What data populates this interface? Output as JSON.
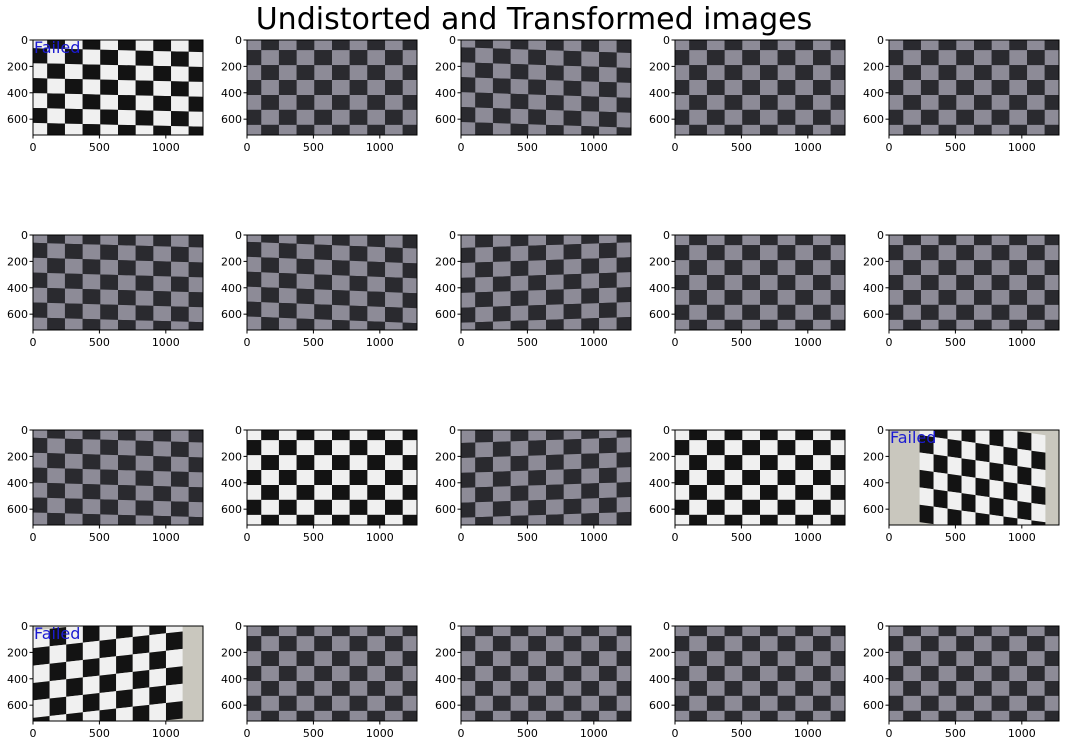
{
  "figure": {
    "suptitle": "Undistorted and Transformed images"
  },
  "colors": {
    "axis": "#000000",
    "failed_text": "#1b1bd1",
    "bw_light": "#f0f0f0",
    "bw_dark": "#131313",
    "gray_light": "#8d8b97",
    "gray_dark": "#2a2a2f",
    "photo_background": "#c9c7be"
  },
  "chart_data": {
    "type": "image-grid",
    "rows": 4,
    "cols": 5,
    "image_width": 1280,
    "image_height": 720,
    "xlim": [
      0,
      1280
    ],
    "ylim": [
      720,
      0
    ],
    "xticks": [
      0,
      500,
      1000
    ],
    "yticks": [
      0,
      200,
      400,
      600
    ],
    "panels": [
      {
        "style": "bw",
        "label": "Failed",
        "skew": 0.04
      },
      {
        "style": "gray",
        "label": "",
        "skew": 0.0
      },
      {
        "style": "gray",
        "label": "",
        "skew": 0.06
      },
      {
        "style": "gray",
        "label": "",
        "skew": 0.0
      },
      {
        "style": "gray",
        "label": "",
        "skew": 0.0
      },
      {
        "style": "gray",
        "label": "",
        "skew": 0.05
      },
      {
        "style": "gray",
        "label": "",
        "skew": 0.07
      },
      {
        "style": "gray",
        "label": "",
        "skew": -0.06
      },
      {
        "style": "gray",
        "label": "",
        "skew": 0.0
      },
      {
        "style": "gray",
        "label": "",
        "skew": 0.0
      },
      {
        "style": "gray",
        "label": "",
        "skew": 0.05
      },
      {
        "style": "bw",
        "label": "",
        "skew": 0.0
      },
      {
        "style": "gray",
        "label": "",
        "skew": -0.06
      },
      {
        "style": "bw",
        "label": "",
        "skew": 0.0
      },
      {
        "style": "photo",
        "label": "Failed",
        "skew": 0.25
      },
      {
        "style": "photo",
        "label": "Failed",
        "skew": -0.2
      },
      {
        "style": "gray",
        "label": "",
        "skew": 0.0
      },
      {
        "style": "gray",
        "label": "",
        "skew": 0.0
      },
      {
        "style": "gray",
        "label": "",
        "skew": 0.0
      },
      {
        "style": "gray",
        "label": "",
        "skew": 0.0
      }
    ]
  }
}
